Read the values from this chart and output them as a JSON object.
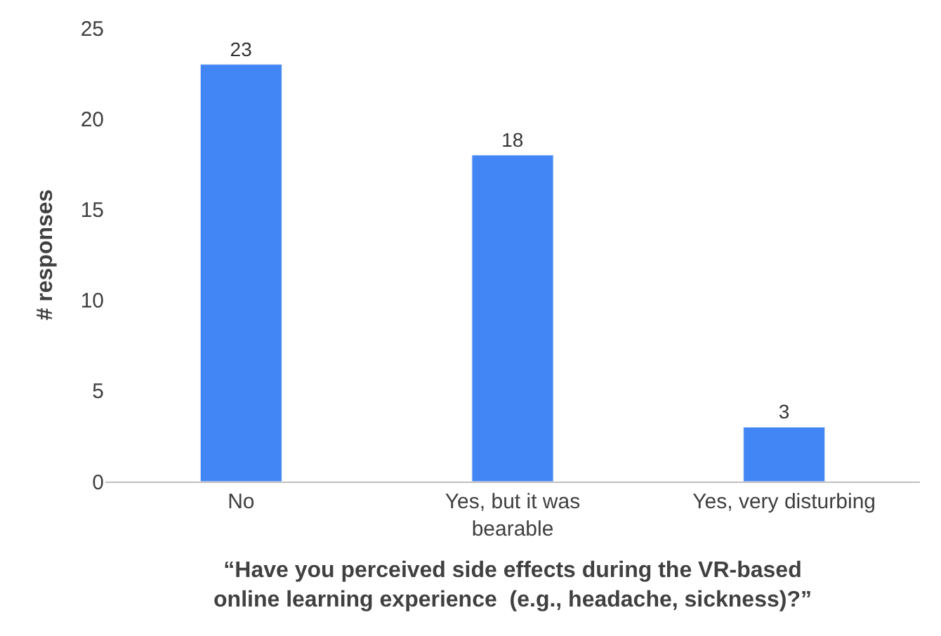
{
  "chart_data": {
    "type": "bar",
    "xlabel": "“Have you perceived side effects during the VR-based\nonline learning experience  (e.g., headache, sickness)?”",
    "ylabel": "# responses",
    "categories": [
      "No",
      "Yes, but it was\nbearable",
      "Yes, very disturbing"
    ],
    "values": [
      23,
      18,
      3
    ],
    "color": "#4285f4",
    "ylim": [
      0,
      25
    ],
    "yticks": [
      0,
      5,
      10,
      15,
      20,
      25
    ],
    "data_labels": true
  }
}
